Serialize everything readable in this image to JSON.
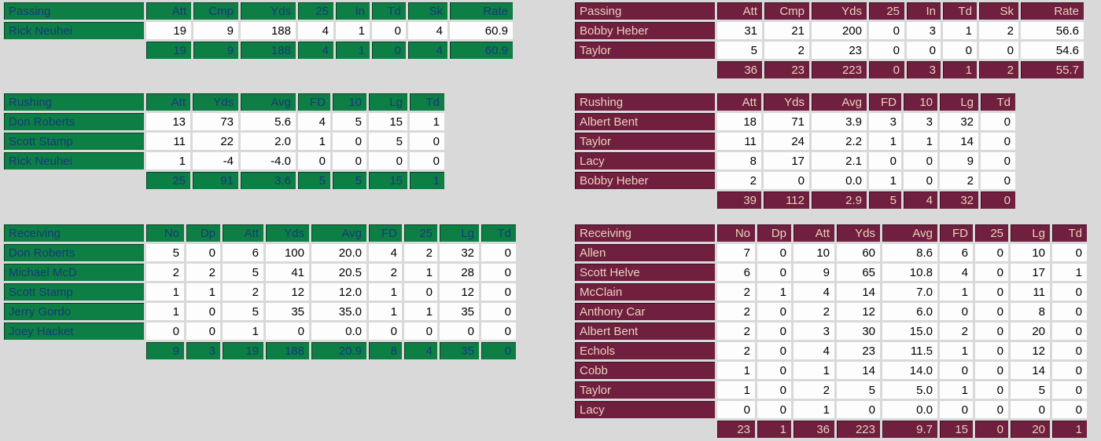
{
  "background": "#d9d9d9",
  "teams": [
    {
      "side": "left",
      "colors": {
        "bg": "#0d7f45",
        "fg": "#16397a"
      },
      "tables": [
        {
          "type": "passing",
          "title": "Passing",
          "headers": [
            "Att",
            "Cmp",
            "Yds",
            "25",
            "In",
            "Td",
            "Sk",
            "Rate"
          ],
          "rows": [
            {
              "name": "Rick Neuhei",
              "values": [
                "19",
                "9",
                "188",
                "4",
                "1",
                "0",
                "4",
                "60.9"
              ]
            }
          ],
          "totals": [
            "19",
            "9",
            "188",
            "4",
            "1",
            "0",
            "4",
            "60.9"
          ]
        },
        {
          "type": "rushing",
          "title": "Rushing",
          "headers": [
            "Att",
            "Yds",
            "Avg",
            "FD",
            "10",
            "Lg",
            "Td"
          ],
          "rows": [
            {
              "name": "Don Roberts",
              "values": [
                "13",
                "73",
                "5.6",
                "4",
                "5",
                "15",
                "1"
              ]
            },
            {
              "name": "Scott Stamp",
              "values": [
                "11",
                "22",
                "2.0",
                "1",
                "0",
                "5",
                "0"
              ]
            },
            {
              "name": "Rick Neuhei",
              "values": [
                "1",
                "-4",
                "-4.0",
                "0",
                "0",
                "0",
                "0"
              ]
            }
          ],
          "totals": [
            "25",
            "91",
            "3.6",
            "5",
            "5",
            "15",
            "1"
          ]
        },
        {
          "type": "receiving",
          "title": "Receiving",
          "headers": [
            "No",
            "Dp",
            "Att",
            "Yds",
            "Avg",
            "FD",
            "25",
            "Lg",
            "Td"
          ],
          "rows": [
            {
              "name": "Don Roberts",
              "values": [
                "5",
                "0",
                "6",
                "100",
                "20.0",
                "4",
                "2",
                "32",
                "0"
              ]
            },
            {
              "name": "Michael McD",
              "values": [
                "2",
                "2",
                "5",
                "41",
                "20.5",
                "2",
                "1",
                "28",
                "0"
              ]
            },
            {
              "name": "Scott Stamp",
              "values": [
                "1",
                "1",
                "2",
                "12",
                "12.0",
                "1",
                "0",
                "12",
                "0"
              ]
            },
            {
              "name": "Jerry Gordo",
              "values": [
                "1",
                "0",
                "5",
                "35",
                "35.0",
                "1",
                "1",
                "35",
                "0"
              ]
            },
            {
              "name": "Joey Hacket",
              "values": [
                "0",
                "0",
                "1",
                "0",
                "0.0",
                "0",
                "0",
                "0",
                "0"
              ]
            }
          ],
          "totals": [
            "9",
            "3",
            "19",
            "188",
            "20.9",
            "8",
            "4",
            "35",
            "0"
          ]
        }
      ]
    },
    {
      "side": "right",
      "colors": {
        "bg": "#701f3f",
        "fg": "#e9d2bc"
      },
      "tables": [
        {
          "type": "passing",
          "title": "Passing",
          "headers": [
            "Att",
            "Cmp",
            "Yds",
            "25",
            "In",
            "Td",
            "Sk",
            "Rate"
          ],
          "rows": [
            {
              "name": "Bobby Heber",
              "values": [
                "31",
                "21",
                "200",
                "0",
                "3",
                "1",
                "2",
                "56.6"
              ]
            },
            {
              "name": "Taylor",
              "values": [
                "5",
                "2",
                "23",
                "0",
                "0",
                "0",
                "0",
                "54.6"
              ]
            }
          ],
          "totals": [
            "36",
            "23",
            "223",
            "0",
            "3",
            "1",
            "2",
            "55.7"
          ]
        },
        {
          "type": "rushing",
          "title": "Rushing",
          "headers": [
            "Att",
            "Yds",
            "Avg",
            "FD",
            "10",
            "Lg",
            "Td"
          ],
          "rows": [
            {
              "name": "Albert Bent",
              "values": [
                "18",
                "71",
                "3.9",
                "3",
                "3",
                "32",
                "0"
              ]
            },
            {
              "name": "Taylor",
              "values": [
                "11",
                "24",
                "2.2",
                "1",
                "1",
                "14",
                "0"
              ]
            },
            {
              "name": "Lacy",
              "values": [
                "8",
                "17",
                "2.1",
                "0",
                "0",
                "9",
                "0"
              ]
            },
            {
              "name": "Bobby Heber",
              "values": [
                "2",
                "0",
                "0.0",
                "1",
                "0",
                "2",
                "0"
              ]
            }
          ],
          "totals": [
            "39",
            "112",
            "2.9",
            "5",
            "4",
            "32",
            "0"
          ]
        },
        {
          "type": "receiving",
          "title": "Receiving",
          "headers": [
            "No",
            "Dp",
            "Att",
            "Yds",
            "Avg",
            "FD",
            "25",
            "Lg",
            "Td"
          ],
          "rows": [
            {
              "name": "Allen",
              "values": [
                "7",
                "0",
                "10",
                "60",
                "8.6",
                "6",
                "0",
                "10",
                "0"
              ]
            },
            {
              "name": "Scott Helve",
              "values": [
                "6",
                "0",
                "9",
                "65",
                "10.8",
                "4",
                "0",
                "17",
                "1"
              ]
            },
            {
              "name": "McClain",
              "values": [
                "2",
                "1",
                "4",
                "14",
                "7.0",
                "1",
                "0",
                "11",
                "0"
              ]
            },
            {
              "name": "Anthony Car",
              "values": [
                "2",
                "0",
                "2",
                "12",
                "6.0",
                "0",
                "0",
                "8",
                "0"
              ]
            },
            {
              "name": "Albert Bent",
              "values": [
                "2",
                "0",
                "3",
                "30",
                "15.0",
                "2",
                "0",
                "20",
                "0"
              ]
            },
            {
              "name": "Echols",
              "values": [
                "2",
                "0",
                "4",
                "23",
                "11.5",
                "1",
                "0",
                "12",
                "0"
              ]
            },
            {
              "name": "Cobb",
              "values": [
                "1",
                "0",
                "1",
                "14",
                "14.0",
                "0",
                "0",
                "14",
                "0"
              ]
            },
            {
              "name": "Taylor",
              "values": [
                "1",
                "0",
                "2",
                "5",
                "5.0",
                "1",
                "0",
                "5",
                "0"
              ]
            },
            {
              "name": "Lacy",
              "values": [
                "0",
                "0",
                "1",
                "0",
                "0.0",
                "0",
                "0",
                "0",
                "0"
              ]
            }
          ],
          "totals": [
            "23",
            "1",
            "36",
            "223",
            "9.7",
            "15",
            "0",
            "20",
            "1"
          ]
        }
      ]
    }
  ]
}
